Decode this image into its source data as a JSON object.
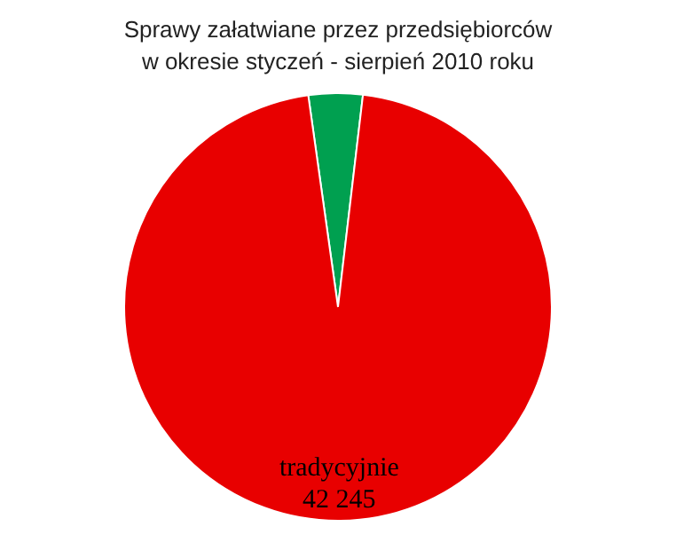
{
  "chart_data": {
    "type": "pie",
    "title": "Sprawy załatwiane  przez przedsiębiorców\nw okresie styczeń - sierpień 2010  roku",
    "categories": [
      null,
      "tradycyjnie"
    ],
    "values": [
      1800,
      42245
    ],
    "colors": [
      "#00a050",
      "#e80000"
    ],
    "value_labels": [
      null,
      "42 245"
    ]
  }
}
